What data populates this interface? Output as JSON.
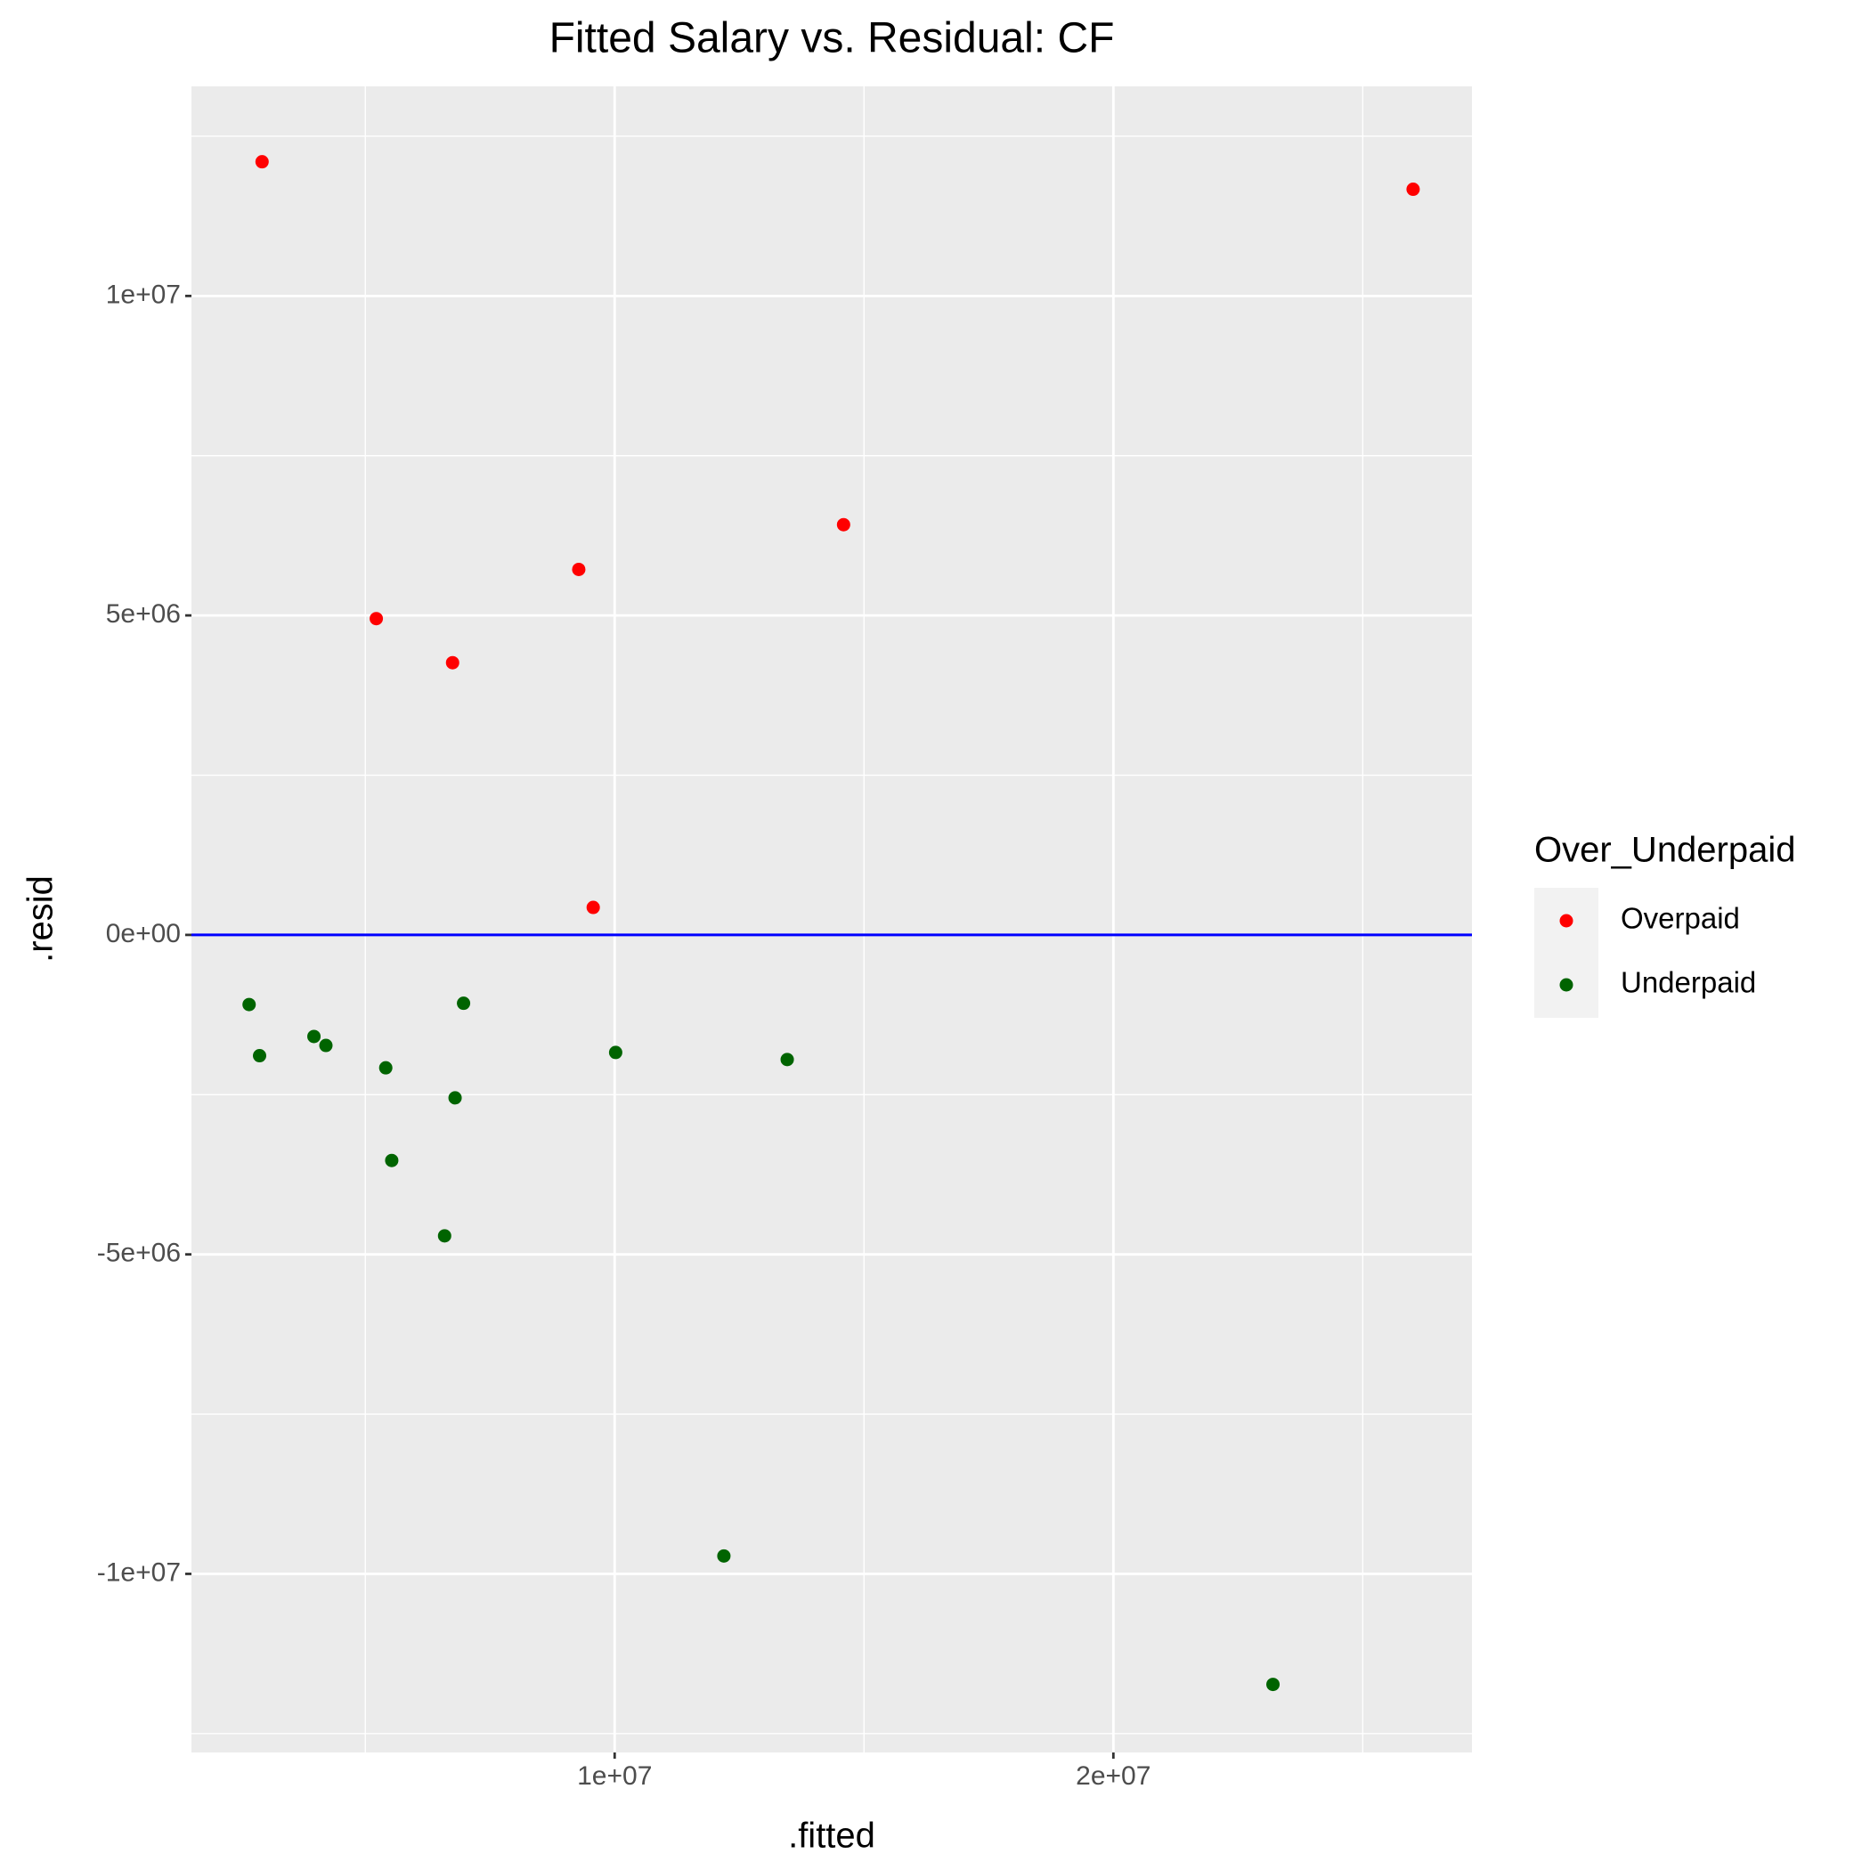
{
  "chart_data": {
    "type": "scatter",
    "title": "Fitted Salary vs. Residual: CF",
    "x_label": ".fitted",
    "y_label": ".resid",
    "legend_title": "Over_Underpaid",
    "legend_position": "right",
    "xlim": [
      1514000,
      27190000
    ],
    "ylim": [
      -12795000,
      13280000
    ],
    "xticks": [
      {
        "value": 10000000,
        "label": "1e+07"
      },
      {
        "value": 20000000,
        "label": "2e+07"
      }
    ],
    "yticks": [
      {
        "value": -10000000,
        "label": "-1e+07"
      },
      {
        "value": -5000000,
        "label": "-5e+06"
      },
      {
        "value": 0,
        "label": "0e+00"
      },
      {
        "value": 5000000,
        "label": "5e+06"
      },
      {
        "value": 10000000,
        "label": "1e+07"
      }
    ],
    "x_minor_grid": [
      5000000,
      15000000,
      25000000
    ],
    "y_minor_grid": [
      -12500000,
      -7500000,
      -2500000,
      2500000,
      7500000,
      12500000
    ],
    "grid": true,
    "hline": {
      "value": 0,
      "color": "#0000ff"
    },
    "series": [
      {
        "name": "Overpaid",
        "color": "#ff0000",
        "x": [
          2930000,
          5220000,
          6750000,
          9280000,
          9570000,
          14590000,
          26010000
        ],
        "y": [
          12100000,
          4950000,
          4260000,
          5720000,
          430000,
          6420000,
          11670000
        ]
      },
      {
        "name": "Underpaid",
        "color": "#006400",
        "x": [
          2670000,
          2880000,
          3970000,
          4210000,
          5410000,
          6970000,
          6800000,
          5530000,
          6590000,
          10020000,
          13460000,
          12190000,
          23200000
        ],
        "y": [
          -1090000,
          -1890000,
          -1590000,
          -1730000,
          -2080000,
          -1070000,
          -2550000,
          -3530000,
          -4710000,
          -1840000,
          -1950000,
          -9720000,
          -11730000
        ]
      }
    ]
  }
}
